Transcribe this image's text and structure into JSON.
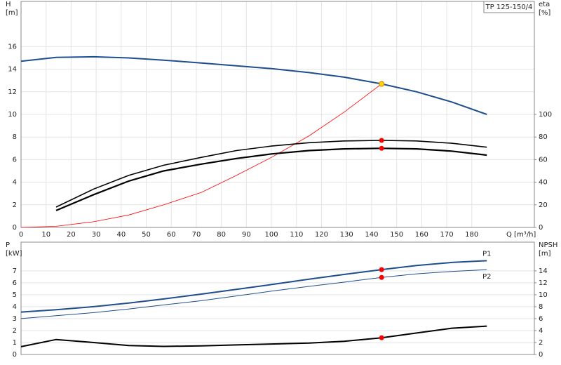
{
  "chart_data": [
    {
      "type": "line",
      "title": "TP 125-150/4",
      "y_label": [
        "H",
        "[m]"
      ],
      "y2_label": [
        "eta",
        "[%]"
      ],
      "x_label": "Q [m³/h]",
      "x": [
        0,
        14,
        29,
        43,
        57,
        72,
        86,
        100,
        115,
        129,
        144,
        158,
        172,
        186
      ],
      "xlim": [
        0,
        205
      ],
      "xticks": [
        0,
        10,
        20,
        30,
        40,
        50,
        60,
        70,
        80,
        90,
        100,
        110,
        120,
        130,
        140,
        150,
        160,
        170,
        180
      ],
      "ylim": [
        0,
        20
      ],
      "yticks": [
        0,
        2,
        4,
        6,
        8,
        10,
        12,
        14,
        16
      ],
      "y2lim": [
        0,
        200
      ],
      "y2ticks": [
        0,
        20,
        40,
        60,
        80,
        100
      ],
      "grid": true,
      "series": [
        {
          "color": "#1f4e8c",
          "width": 2,
          "values": [
            14.7,
            15.05,
            15.1,
            15.0,
            14.8,
            14.55,
            14.3,
            14.05,
            13.7,
            13.3,
            12.7,
            12.0,
            11.1,
            10.0
          ]
        },
        {
          "color": "#ff0000",
          "width": 0.8,
          "values": [
            0,
            0.1,
            0.5,
            1.1,
            2.0,
            3.1,
            4.6,
            6.2,
            8.1,
            10.2,
            12.7,
            null,
            null,
            null
          ]
        },
        {
          "color": "#000000",
          "width": 1.6,
          "axis": "y2",
          "values": [
            null,
            18,
            34,
            46,
            55,
            62,
            68,
            72,
            75,
            76.5,
            77,
            76.5,
            74.5,
            71
          ]
        },
        {
          "color": "#000000",
          "width": 2.2,
          "axis": "y2",
          "values": [
            null,
            15,
            29,
            41,
            50,
            56,
            61,
            65,
            68,
            69.5,
            70,
            69.5,
            67.5,
            64
          ]
        }
      ],
      "points": [
        {
          "x": 144,
          "y": 12.7,
          "color": "#ffd700"
        },
        {
          "x": 144,
          "y": 77,
          "axis": "y2",
          "color": "#ff0000"
        },
        {
          "x": 144,
          "y": 70,
          "axis": "y2",
          "color": "#ff0000"
        }
      ]
    },
    {
      "type": "line",
      "y_label": [
        "P",
        "[kW]"
      ],
      "y2_label": [
        "NPSH",
        "[m]"
      ],
      "x": [
        0,
        14,
        29,
        43,
        57,
        72,
        86,
        100,
        115,
        129,
        144,
        158,
        172,
        186
      ],
      "xlim": [
        0,
        205
      ],
      "ylim": [
        0,
        9.4
      ],
      "yticks": [
        0,
        1,
        2,
        3,
        4,
        5,
        6,
        7
      ],
      "y2lim": [
        0,
        18.8
      ],
      "y2ticks": [
        0,
        2,
        4,
        6,
        8,
        10,
        12,
        14
      ],
      "grid": true,
      "series": [
        {
          "name": "P1",
          "color": "#1f4e8c",
          "width": 2,
          "values": [
            3.55,
            3.75,
            4.0,
            4.3,
            4.65,
            5.05,
            5.45,
            5.85,
            6.3,
            6.7,
            7.1,
            7.45,
            7.7,
            7.85
          ]
        },
        {
          "name": "P2",
          "color": "#1f4e8c",
          "width": 1,
          "values": [
            3.0,
            3.25,
            3.5,
            3.8,
            4.15,
            4.5,
            4.9,
            5.3,
            5.7,
            6.05,
            6.45,
            6.75,
            6.95,
            7.1
          ]
        },
        {
          "color": "#000000",
          "width": 2,
          "axis": "y2",
          "values": [
            1.3,
            2.5,
            2.0,
            1.5,
            1.35,
            1.45,
            1.6,
            1.75,
            1.9,
            2.2,
            2.8,
            3.6,
            4.4,
            4.75
          ]
        }
      ],
      "points": [
        {
          "x": 144,
          "y": 7.1,
          "color": "#ff0000"
        },
        {
          "x": 144,
          "y": 6.45,
          "color": "#ff0000"
        },
        {
          "x": 144,
          "y": 2.8,
          "axis": "y2",
          "color": "#ff0000"
        }
      ]
    }
  ]
}
